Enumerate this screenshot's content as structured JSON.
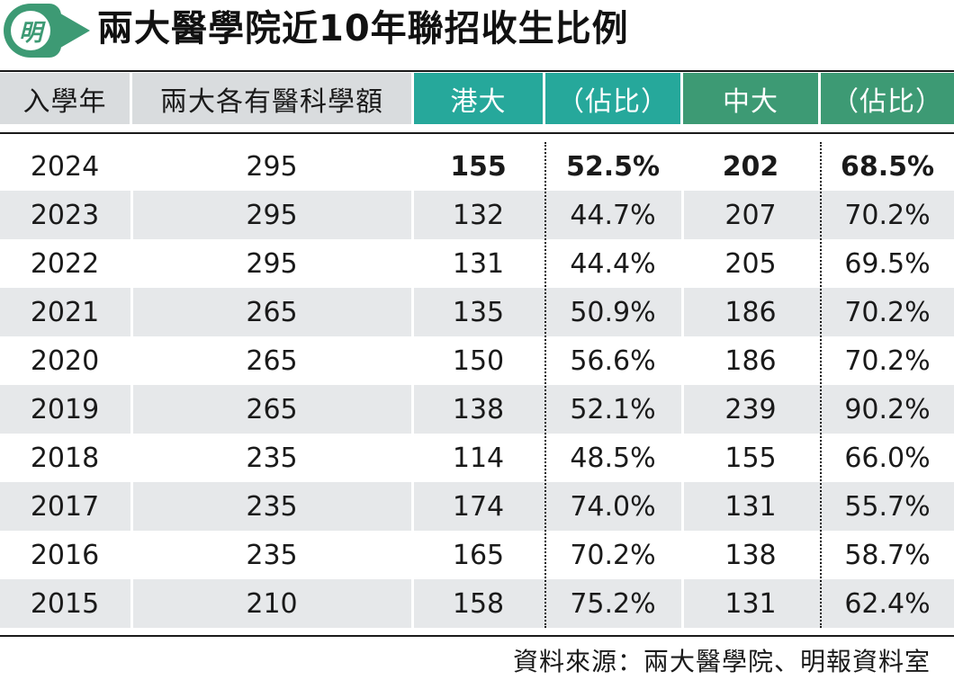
{
  "title": "兩大醫學院近10年聯招收生比例",
  "logo_text": "明",
  "colors": {
    "hku": "#26a89b",
    "cuhk": "#3d9a74",
    "header_grey": "#d9dcde",
    "row_shade": "#e6e8ea"
  },
  "headers": [
    "入學年",
    "兩大各有醫科學額",
    "港大",
    "（佔比）",
    "中大",
    "（佔比）"
  ],
  "source": "資料來源：兩大醫學院、明報資料室",
  "chart_data": {
    "type": "table",
    "title": "兩大醫學院近10年聯招收生比例",
    "columns": [
      "入學年",
      "兩大各有醫科學額",
      "港大",
      "（佔比）",
      "中大",
      "（佔比）"
    ],
    "rows": [
      [
        "2024",
        "295",
        "155",
        "52.5%",
        "202",
        "68.5%"
      ],
      [
        "2023",
        "295",
        "132",
        "44.7%",
        "207",
        "70.2%"
      ],
      [
        "2022",
        "295",
        "131",
        "44.4%",
        "205",
        "69.5%"
      ],
      [
        "2021",
        "265",
        "135",
        "50.9%",
        "186",
        "70.2%"
      ],
      [
        "2020",
        "265",
        "150",
        "56.6%",
        "186",
        "70.2%"
      ],
      [
        "2019",
        "265",
        "138",
        "52.1%",
        "239",
        "90.2%"
      ],
      [
        "2018",
        "235",
        "114",
        "48.5%",
        "155",
        "66.0%"
      ],
      [
        "2017",
        "235",
        "174",
        "74.0%",
        "131",
        "55.7%"
      ],
      [
        "2016",
        "235",
        "165",
        "70.2%",
        "138",
        "58.7%"
      ],
      [
        "2015",
        "210",
        "158",
        "75.2%",
        "131",
        "62.4%"
      ]
    ]
  }
}
